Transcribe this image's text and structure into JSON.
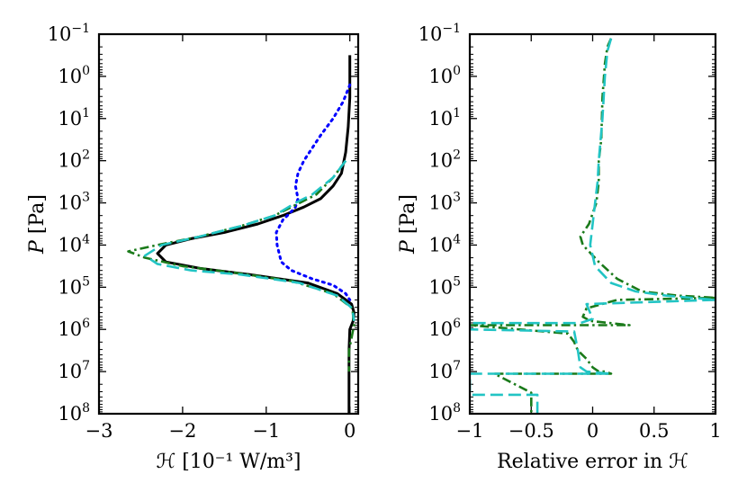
{
  "chart_data": [
    {
      "type": "line",
      "xlabel": "ℋ [10⁻¹ W/m³]",
      "ylabel_sym": "P",
      "ylabel_unit": "[Pa]",
      "xlim": [
        -3,
        0.1
      ],
      "ylim_exp": [
        -1,
        8
      ],
      "yscale": "log",
      "yaxis_inverted": true,
      "x_ticks": [
        "−3",
        "−2",
        "−1",
        "0"
      ],
      "x_tick_values": [
        -3,
        -2,
        -1,
        0
      ],
      "y_tick_exponents": [
        "−1",
        "0",
        "1",
        "2",
        "3",
        "4",
        "5",
        "6",
        "7",
        "8"
      ],
      "series": [
        {
          "name": "black-solid",
          "color": "#000000",
          "style": "solid",
          "x": [
            0,
            0,
            -0.02,
            -0.05,
            -0.1,
            -0.2,
            -0.35,
            -0.55,
            -0.8,
            -1.1,
            -1.5,
            -1.9,
            -2.2,
            -2.3,
            -2.2,
            -1.8,
            -1.2,
            -0.5,
            -0.15,
            0.02,
            0.05,
            0.04,
            0.0,
            -0.01,
            -0.01,
            -0.01
          ],
          "y_exp": [
            -0.5,
            0.5,
            1.2,
            1.8,
            2.3,
            2.6,
            2.9,
            3.1,
            3.3,
            3.5,
            3.7,
            3.85,
            4.0,
            4.2,
            4.4,
            4.55,
            4.7,
            4.9,
            5.15,
            5.4,
            5.6,
            5.8,
            6.0,
            6.5,
            7.5,
            8.0
          ]
        },
        {
          "name": "blue-dotted",
          "color": "#0000ff",
          "style": "dotted",
          "x": [
            0,
            -0.08,
            -0.2,
            -0.35,
            -0.45,
            -0.55,
            -0.62,
            -0.65,
            -0.62,
            -0.65,
            -0.72,
            -0.8,
            -0.88,
            -0.87,
            -0.82,
            -0.7,
            -0.45,
            -0.2,
            -0.05,
            0
          ],
          "y_exp": [
            0.2,
            0.6,
            1.0,
            1.4,
            1.7,
            2.0,
            2.3,
            2.6,
            2.9,
            3.1,
            3.25,
            3.4,
            3.7,
            4.0,
            4.4,
            4.6,
            4.8,
            4.95,
            5.15,
            5.3
          ]
        },
        {
          "name": "green-dashdot",
          "color": "#1a7a1a",
          "style": "dashdot",
          "x": [
            -0.05,
            -0.2,
            -0.4,
            -0.6,
            -0.9,
            -1.3,
            -1.8,
            -2.3,
            -2.65,
            -2.45,
            -2.0,
            -1.4,
            -0.7,
            -0.2,
            0.03,
            0.05,
            -0.01,
            -0.01
          ],
          "y_exp": [
            2.0,
            2.4,
            2.8,
            3.0,
            3.3,
            3.55,
            3.8,
            4.0,
            4.15,
            4.3,
            4.5,
            4.65,
            4.85,
            5.15,
            5.5,
            5.9,
            6.5,
            7.0
          ]
        },
        {
          "name": "cyan-dashed",
          "color": "#22c4c4",
          "style": "dashed",
          "x": [
            -0.05,
            -0.2,
            -0.45,
            -0.65,
            -0.9,
            -1.3,
            -1.8,
            -2.25,
            -2.45,
            -2.3,
            -1.9,
            -1.3,
            -0.6,
            -0.15,
            0.03,
            0.05
          ],
          "y_exp": [
            2.0,
            2.4,
            2.8,
            3.0,
            3.3,
            3.55,
            3.8,
            4.0,
            4.25,
            4.45,
            4.6,
            4.7,
            4.9,
            5.2,
            5.5,
            5.8
          ]
        }
      ]
    },
    {
      "type": "line",
      "xlabel": "Relative error in ℋ",
      "ylabel_sym": "P",
      "ylabel_unit": "[Pa]",
      "xlim": [
        -1,
        1
      ],
      "ylim_exp": [
        -1,
        8
      ],
      "yscale": "log",
      "yaxis_inverted": true,
      "x_ticks": [
        "−1",
        "−0.5",
        "0",
        "0.5",
        "1"
      ],
      "x_tick_values": [
        -1,
        -0.5,
        0,
        0.5,
        1
      ],
      "y_tick_exponents": [
        "−1",
        "0",
        "1",
        "2",
        "3",
        "4",
        "5",
        "6",
        "7",
        "8"
      ],
      "series": [
        {
          "name": "green-dashdot",
          "color": "#1a7a1a",
          "style": "dashdot",
          "x": [
            0.15,
            0.12,
            0.1,
            0.08,
            0.07,
            0.05,
            0.05,
            0.03,
            -0.03,
            -0.1,
            -0.08,
            0.05,
            0.2,
            0.4,
            0.7,
            1.0,
            0.2,
            -0.05,
            -0.08,
            -0.02,
            0.3,
            -1.0,
            -0.2,
            -0.15,
            -0.12,
            -0.05,
            0.0,
            0.05,
            0.1,
            0.15,
            -0.8,
            -0.5,
            -0.5,
            -0.5
          ],
          "y_exp": [
            -0.9,
            -0.7,
            -0.3,
            0.5,
            1.5,
            2.0,
            2.5,
            3.0,
            3.5,
            3.8,
            4.0,
            4.4,
            4.8,
            5.1,
            5.2,
            5.25,
            5.3,
            5.5,
            5.7,
            5.8,
            5.9,
            5.9,
            6.1,
            6.3,
            6.5,
            6.7,
            6.9,
            7.0,
            7.0,
            7.05,
            7.05,
            7.5,
            7.7,
            8.0
          ]
        },
        {
          "name": "cyan-dashed",
          "color": "#22c4c4",
          "style": "dashed",
          "x": [
            0.15,
            0.12,
            0.1,
            0.08,
            0.05,
            0.04,
            0.02,
            0.0,
            -0.02,
            0.02,
            0.15,
            0.35,
            0.6,
            1.0,
            -0.05,
            0.0,
            -0.1,
            -1.0,
            -1.0,
            -0.15,
            -0.12,
            -0.1,
            -0.05,
            0.15,
            -1.0,
            -1.0,
            -0.45,
            -0.45
          ],
          "y_exp": [
            -0.9,
            -0.6,
            0.0,
            1.0,
            2.0,
            2.5,
            3.0,
            3.5,
            4.0,
            4.5,
            4.9,
            5.1,
            5.2,
            5.3,
            5.4,
            5.75,
            5.85,
            5.85,
            6.0,
            6.05,
            6.5,
            6.9,
            7.0,
            7.05,
            7.05,
            7.55,
            7.55,
            8.0
          ]
        }
      ]
    }
  ]
}
